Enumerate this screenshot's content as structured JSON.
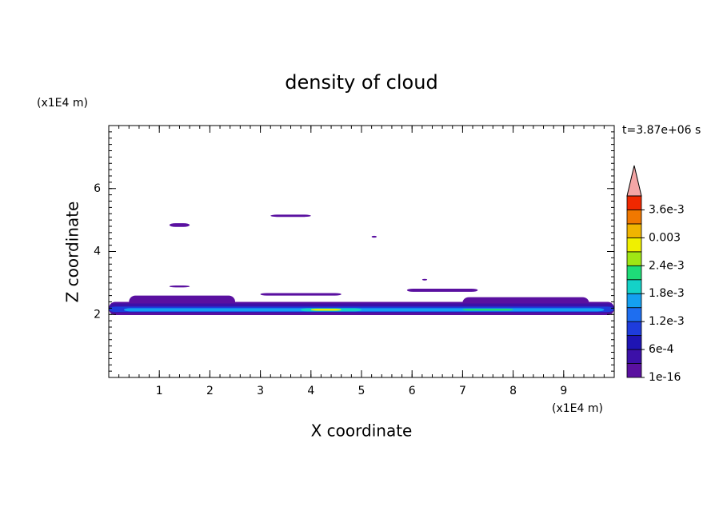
{
  "chart_data": {
    "type": "contour",
    "title": "density of cloud",
    "x_label": "X coordinate",
    "y_label": "Z coordinate",
    "x_unit": "(x1E4 m)",
    "y_unit": "(x1E4 m)",
    "time_label": "t=3.87e+06 s",
    "xlim": [
      0,
      10
    ],
    "ylim": [
      0,
      8
    ],
    "xticks": [
      1,
      2,
      3,
      4,
      5,
      6,
      7,
      8,
      9
    ],
    "yticks": [
      2,
      4,
      6
    ],
    "xminor": 0.2,
    "yminor": 0.2,
    "colorbar": {
      "levels": [
        1e-16,
        0.0003,
        0.0006,
        0.0009,
        0.0012,
        0.0015,
        0.0018,
        0.0021,
        0.0024,
        0.0027,
        0.003,
        0.0033,
        0.0036,
        0.0039
      ],
      "colors": [
        "#5a10a0",
        "#3c10a8",
        "#1e14b4",
        "#1e3cdc",
        "#1e6ef0",
        "#14a0f0",
        "#14d2c8",
        "#1edc78",
        "#a0e614",
        "#f0f000",
        "#f0b400",
        "#f07800",
        "#f02800"
      ],
      "over_color": "#f4a6a6",
      "ticks": [
        {
          "value": 1e-16,
          "label": "1e-16"
        },
        {
          "value": 0.0006,
          "label": "6e-4"
        },
        {
          "value": 0.0012,
          "label": "1.2e-3"
        },
        {
          "value": 0.0018,
          "label": "1.8e-3"
        },
        {
          "value": 0.0024,
          "label": "2.4e-3"
        },
        0.003,
        {
          "value": 0.0036,
          "label": "3.6e-3"
        }
      ]
    },
    "regions": [
      {
        "x": [
          1.2,
          1.6
        ],
        "z": [
          4.78,
          4.9
        ],
        "value": 0.0002
      },
      {
        "x": [
          3.2,
          4.0
        ],
        "z": [
          5.1,
          5.17
        ],
        "value": 0.0002
      },
      {
        "x": [
          5.2,
          5.3
        ],
        "z": [
          4.44,
          4.5
        ],
        "value": 0.0002
      },
      {
        "x": [
          1.2,
          1.6
        ],
        "z": [
          2.86,
          2.92
        ],
        "value": 0.0002
      },
      {
        "x": [
          6.2,
          6.3
        ],
        "z": [
          3.08,
          3.13
        ],
        "value": 0.0002
      },
      {
        "x": [
          5.9,
          7.3
        ],
        "z": [
          2.72,
          2.82
        ],
        "value": 0.0002
      },
      {
        "x": [
          3.0,
          4.6
        ],
        "z": [
          2.6,
          2.68
        ],
        "value": 0.0002
      },
      {
        "x": [
          0.4,
          2.5
        ],
        "z": [
          2.2,
          2.6
        ],
        "value": 0.0002
      },
      {
        "x": [
          0,
          10
        ],
        "z": [
          1.98,
          2.4
        ],
        "value": 0.0002
      },
      {
        "x": [
          7.0,
          9.5
        ],
        "z": [
          2.2,
          2.55
        ],
        "value": 0.0002
      },
      {
        "x": [
          0,
          10
        ],
        "z": [
          2.05,
          2.35
        ],
        "value": 0.0005
      },
      {
        "x": [
          0,
          10
        ],
        "z": [
          2.08,
          2.25
        ],
        "value": 0.001
      },
      {
        "x": [
          0.3,
          9.8
        ],
        "z": [
          2.1,
          2.2
        ],
        "value": 0.0016
      },
      {
        "x": [
          3.8,
          5.0
        ],
        "z": [
          2.1,
          2.2
        ],
        "value": 0.002
      },
      {
        "x": [
          4.0,
          4.6
        ],
        "z": [
          2.12,
          2.18
        ],
        "value": 0.0028
      },
      {
        "x": [
          7.0,
          8.0
        ],
        "z": [
          2.12,
          2.18
        ],
        "value": 0.0022
      }
    ]
  }
}
